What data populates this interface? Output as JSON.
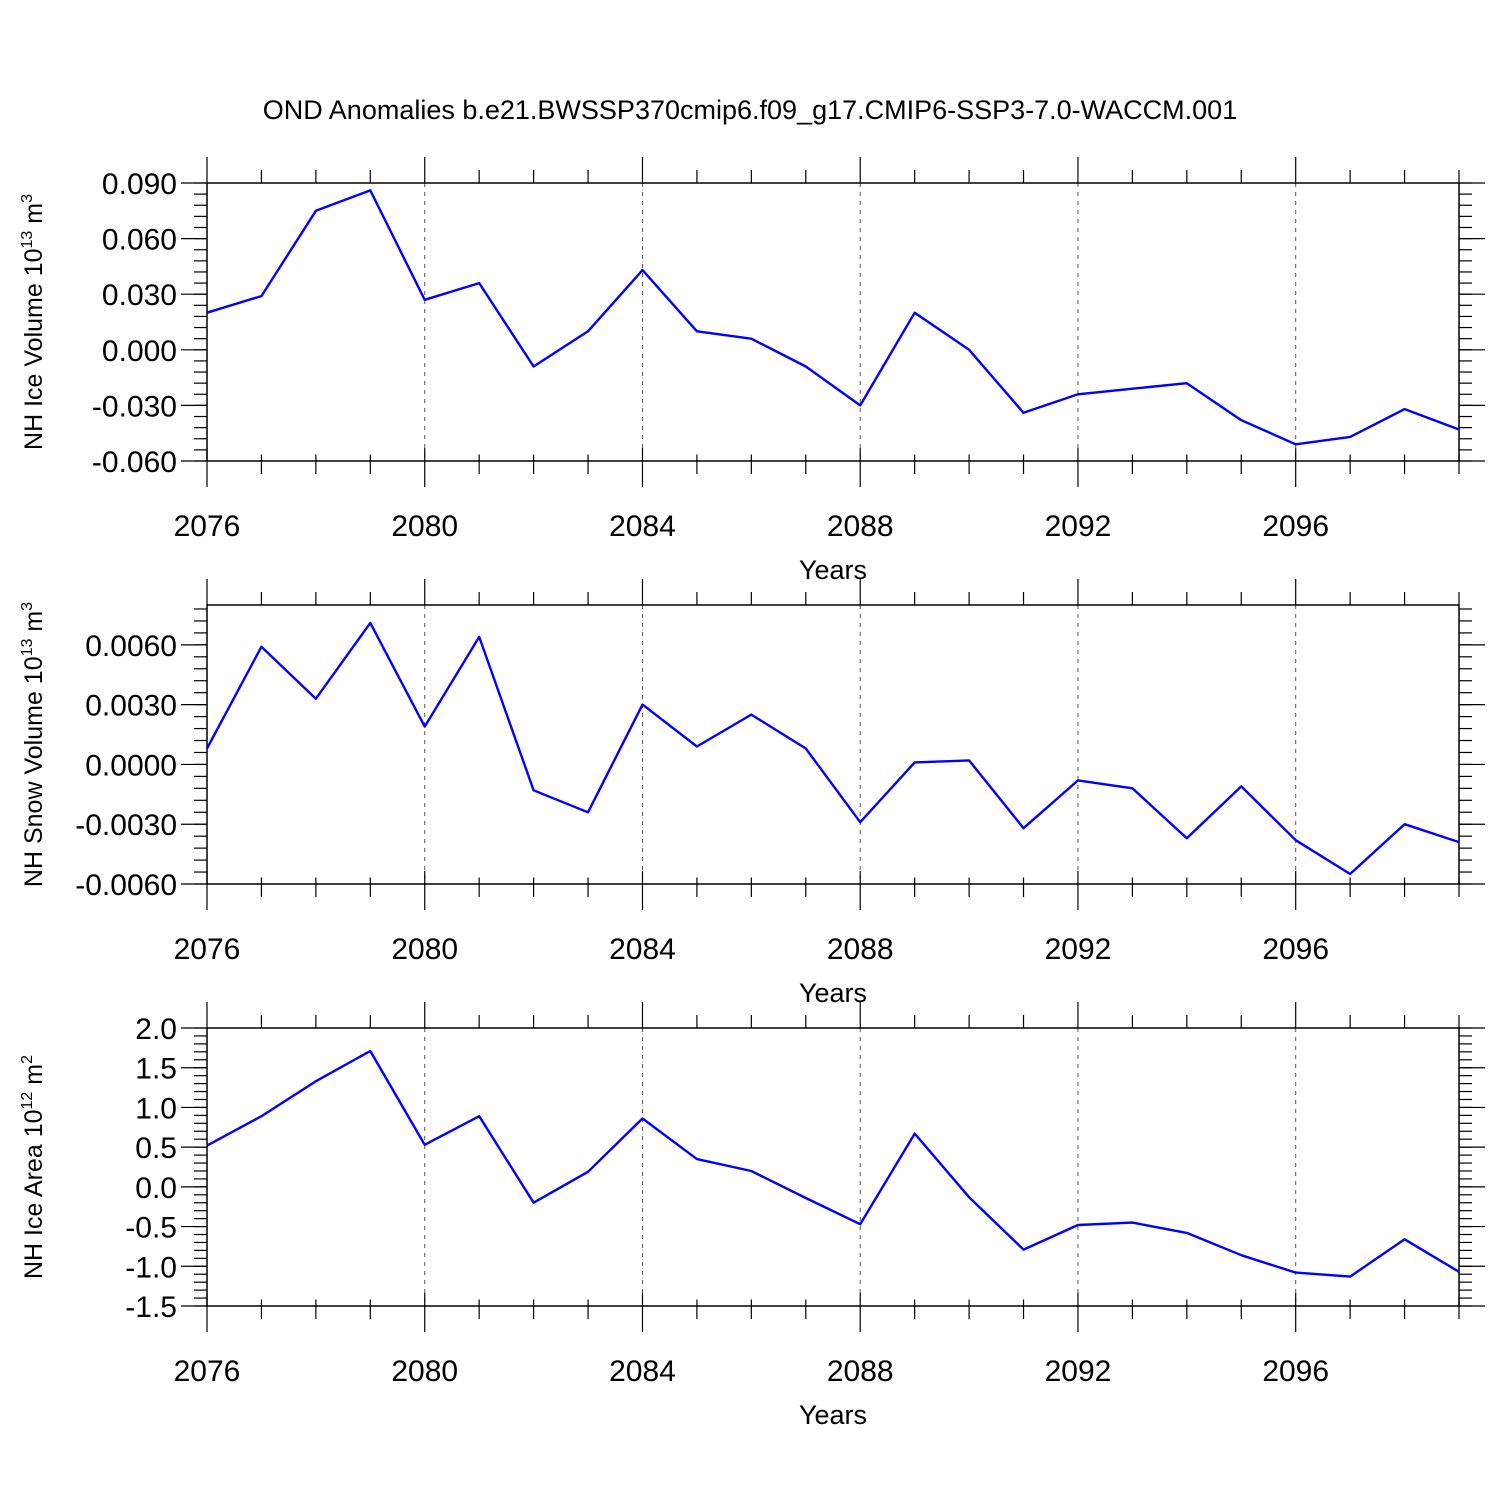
{
  "title": "OND Anomalies b.e21.BWSSP370cmip6.f09_g17.CMIP6-SSP3-7.0-WACCM.001",
  "chart_data": [
    {
      "type": "line",
      "ylabel": "NH Ice Volume 10",
      "ylabel_exp": "13",
      "ylabel_unit": " m",
      "ylabel_unit_exp": "3",
      "xlabel": "Years",
      "xlim": [
        2076,
        2099
      ],
      "ylim": [
        -0.06,
        0.09
      ],
      "xticks": [
        2076,
        2080,
        2084,
        2088,
        2092,
        2096
      ],
      "xtick_labels": [
        "2076",
        "2080",
        "2084",
        "2088",
        "2092",
        "2096"
      ],
      "yticks": [
        -0.06,
        -0.03,
        0.0,
        0.03,
        0.06,
        0.09
      ],
      "ytick_labels": [
        "-0.060",
        "-0.030",
        "0.000",
        "0.030",
        "0.060",
        "0.090"
      ],
      "grid_x": [
        2080,
        2084,
        2088,
        2092,
        2096
      ],
      "x": [
        2076,
        2077,
        2078,
        2079,
        2080,
        2081,
        2082,
        2083,
        2084,
        2085,
        2086,
        2087,
        2088,
        2089,
        2090,
        2091,
        2092,
        2093,
        2094,
        2095,
        2096,
        2097,
        2098,
        2099
      ],
      "series": [
        {
          "color": "#0000ff",
          "values": [
            0.02,
            0.029,
            0.075,
            0.086,
            0.027,
            0.036,
            -0.009,
            0.01,
            0.043,
            0.01,
            0.006,
            -0.009,
            -0.03,
            0.02,
            0.0,
            -0.034,
            -0.024,
            -0.021,
            -0.018,
            -0.038,
            -0.051,
            -0.047,
            -0.032,
            -0.043
          ]
        }
      ]
    },
    {
      "type": "line",
      "ylabel": "NH Snow Volume 10",
      "ylabel_exp": "13",
      "ylabel_unit": " m",
      "ylabel_unit_exp": "3",
      "xlabel": "Years",
      "xlim": [
        2076,
        2099
      ],
      "ylim": [
        -0.006,
        0.008
      ],
      "xticks": [
        2076,
        2080,
        2084,
        2088,
        2092,
        2096
      ],
      "xtick_labels": [
        "2076",
        "2080",
        "2084",
        "2088",
        "2092",
        "2096"
      ],
      "yticks": [
        -0.006,
        -0.003,
        0.0,
        0.003,
        0.006
      ],
      "ytick_labels": [
        "-0.0060",
        "-0.0030",
        "0.0000",
        "0.0030",
        "0.0060"
      ],
      "grid_x": [
        2080,
        2084,
        2088,
        2092,
        2096
      ],
      "x": [
        2076,
        2077,
        2078,
        2079,
        2080,
        2081,
        2082,
        2083,
        2084,
        2085,
        2086,
        2087,
        2088,
        2089,
        2090,
        2091,
        2092,
        2093,
        2094,
        2095,
        2096,
        2097,
        2098,
        2099
      ],
      "series": [
        {
          "color": "#0000ff",
          "values": [
            0.0008,
            0.0059,
            0.0033,
            0.0071,
            0.0019,
            0.0064,
            -0.0013,
            -0.0024,
            0.003,
            0.0009,
            0.0025,
            0.0008,
            -0.0029,
            0.0001,
            0.0002,
            -0.0032,
            -0.0008,
            -0.0012,
            -0.0037,
            -0.0011,
            -0.0038,
            -0.0055,
            -0.003,
            -0.0039
          ]
        }
      ]
    },
    {
      "type": "line",
      "ylabel": "NH Ice Area 10",
      "ylabel_exp": "12",
      "ylabel_unit": " m",
      "ylabel_unit_exp": "2",
      "xlabel": "Years",
      "xlim": [
        2076,
        2099
      ],
      "ylim": [
        -1.5,
        2.0
      ],
      "xticks": [
        2076,
        2080,
        2084,
        2088,
        2092,
        2096
      ],
      "xtick_labels": [
        "2076",
        "2080",
        "2084",
        "2088",
        "2092",
        "2096"
      ],
      "yticks": [
        -1.5,
        -1.0,
        -0.5,
        0.0,
        0.5,
        1.0,
        1.5,
        2.0
      ],
      "ytick_labels": [
        "-1.5",
        "-1.0",
        "-0.5",
        "0.0",
        "0.5",
        "1.0",
        "1.5",
        "2.0"
      ],
      "grid_x": [
        2080,
        2084,
        2088,
        2092,
        2096
      ],
      "x": [
        2076,
        2077,
        2078,
        2079,
        2080,
        2081,
        2082,
        2083,
        2084,
        2085,
        2086,
        2087,
        2088,
        2089,
        2090,
        2091,
        2092,
        2093,
        2094,
        2095,
        2096,
        2097,
        2098,
        2099
      ],
      "series": [
        {
          "color": "#0000ff",
          "values": [
            0.52,
            0.89,
            1.33,
            1.71,
            0.53,
            0.89,
            -0.2,
            0.19,
            0.86,
            0.35,
            0.2,
            -0.14,
            -0.47,
            0.67,
            -0.13,
            -0.79,
            -0.48,
            -0.45,
            -0.58,
            -0.86,
            -1.08,
            -1.13,
            -0.66,
            -1.07
          ]
        }
      ]
    }
  ]
}
